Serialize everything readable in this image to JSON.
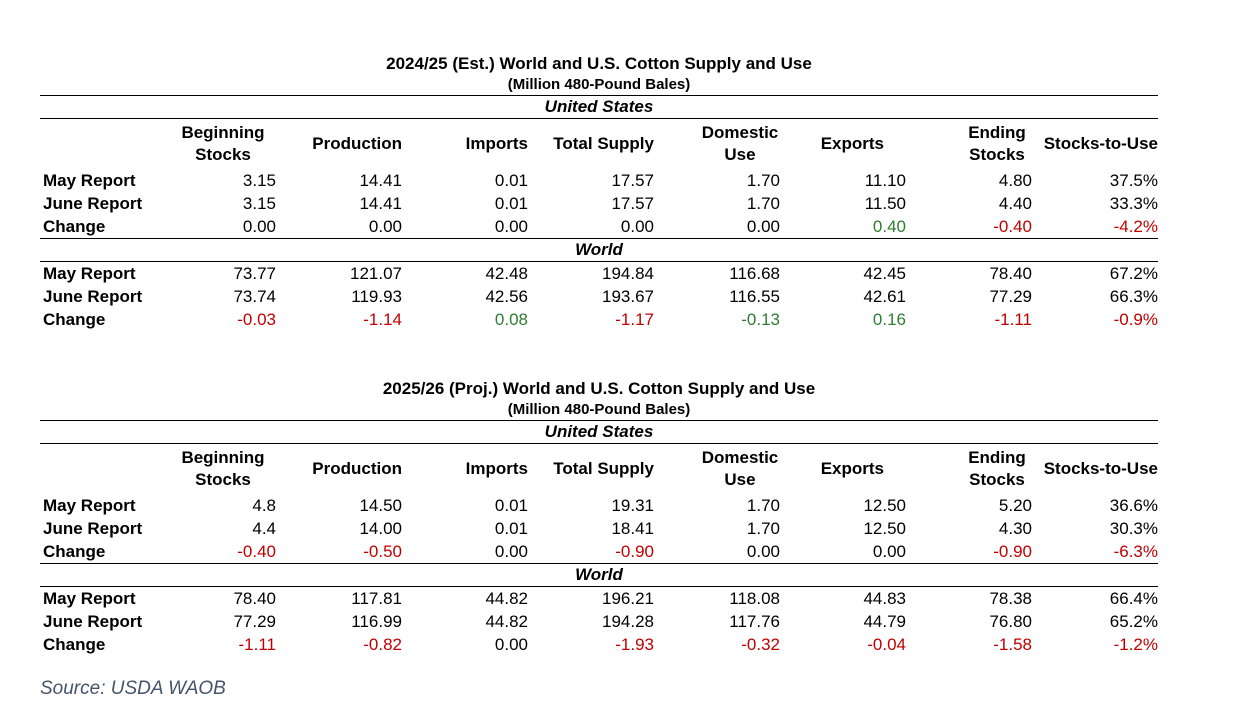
{
  "tables": [
    {
      "title": "2024/25 (Est.) World and U.S. Cotton Supply and Use",
      "subtitle": "(Million 480-Pound Bales)",
      "columns": [
        "Beginning Stocks",
        "Production",
        "Imports",
        "Total Supply",
        "Domestic Use",
        "Exports",
        "Ending Stocks",
        "Stocks-to-Use"
      ],
      "sections": [
        {
          "name": "United States",
          "rows": [
            {
              "label": "May Report",
              "values": [
                "3.15",
                "14.41",
                "0.01",
                "17.57",
                "1.70",
                "11.10",
                "4.80",
                "37.5%"
              ]
            },
            {
              "label": "June Report",
              "values": [
                "3.15",
                "14.41",
                "0.01",
                "17.57",
                "1.70",
                "11.50",
                "4.40",
                "33.3%"
              ]
            },
            {
              "label": "Change",
              "values": [
                "0.00",
                "0.00",
                "0.00",
                "0.00",
                "0.00",
                "0.40",
                "-0.40",
                "-4.2%"
              ],
              "colors": [
                "none",
                "none",
                "none",
                "none",
                "none",
                "pos",
                "neg",
                "neg"
              ]
            }
          ]
        },
        {
          "name": "World",
          "rows": [
            {
              "label": "May Report",
              "values": [
                "73.77",
                "121.07",
                "42.48",
                "194.84",
                "116.68",
                "42.45",
                "78.40",
                "67.2%"
              ]
            },
            {
              "label": "June Report",
              "values": [
                "73.74",
                "119.93",
                "42.56",
                "193.67",
                "116.55",
                "42.61",
                "77.29",
                "66.3%"
              ]
            },
            {
              "label": "Change",
              "values": [
                "-0.03",
                "-1.14",
                "0.08",
                "-1.17",
                "-0.13",
                "0.16",
                "-1.11",
                "-0.9%"
              ],
              "colors": [
                "neg",
                "neg",
                "pos",
                "neg",
                "pos",
                "pos",
                "neg",
                "neg"
              ]
            }
          ]
        }
      ]
    },
    {
      "title": "2025/26 (Proj.) World and U.S. Cotton Supply and Use",
      "subtitle": "(Million 480-Pound Bales)",
      "columns": [
        "Beginning Stocks",
        "Production",
        "Imports",
        "Total Supply",
        "Domestic Use",
        "Exports",
        "Ending Stocks",
        "Stocks-to-Use"
      ],
      "sections": [
        {
          "name": "United States",
          "rows": [
            {
              "label": "May Report",
              "values": [
                "4.8",
                "14.50",
                "0.01",
                "19.31",
                "1.70",
                "12.50",
                "5.20",
                "36.6%"
              ]
            },
            {
              "label": "June Report",
              "values": [
                "4.4",
                "14.00",
                "0.01",
                "18.41",
                "1.70",
                "12.50",
                "4.30",
                "30.3%"
              ]
            },
            {
              "label": "Change",
              "values": [
                "-0.40",
                "-0.50",
                "0.00",
                "-0.90",
                "0.00",
                "0.00",
                "-0.90",
                "-6.3%"
              ],
              "colors": [
                "neg",
                "neg",
                "none",
                "neg",
                "none",
                "none",
                "neg",
                "neg"
              ]
            }
          ]
        },
        {
          "name": "World",
          "rows": [
            {
              "label": "May Report",
              "values": [
                "78.40",
                "117.81",
                "44.82",
                "196.21",
                "118.08",
                "44.83",
                "78.38",
                "66.4%"
              ]
            },
            {
              "label": "June Report",
              "values": [
                "77.29",
                "116.99",
                "44.82",
                "194.28",
                "117.76",
                "44.79",
                "76.80",
                "65.2%"
              ]
            },
            {
              "label": "Change",
              "values": [
                "-1.11",
                "-0.82",
                "0.00",
                "-1.93",
                "-0.32",
                "-0.04",
                "-1.58",
                "-1.2%"
              ],
              "colors": [
                "neg",
                "neg",
                "none",
                "neg",
                "neg",
                "neg",
                "neg",
                "neg"
              ]
            }
          ]
        }
      ]
    }
  ],
  "source": "Source: USDA WAOB",
  "colors": {
    "negative": "#c00000",
    "positive": "#2e7d32",
    "source_text": "#44546a"
  }
}
